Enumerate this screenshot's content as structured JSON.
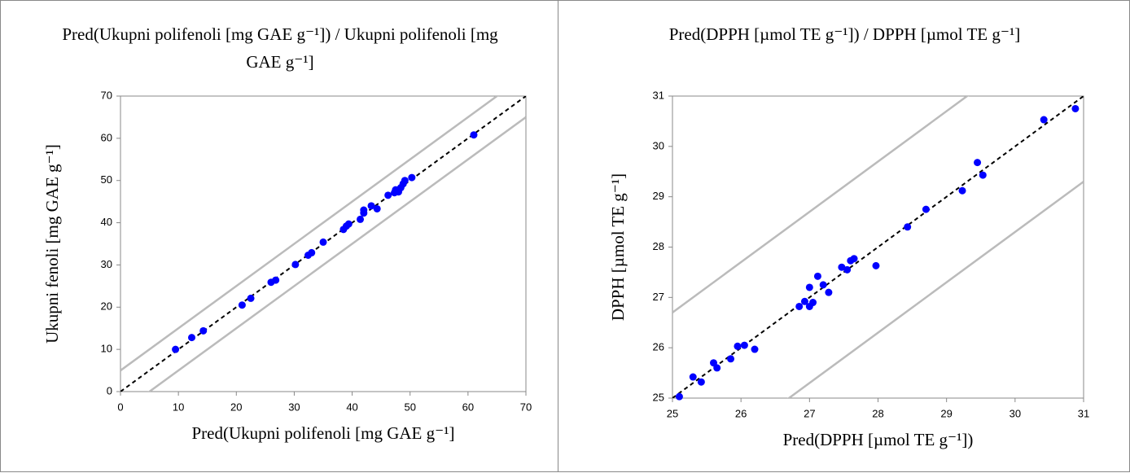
{
  "chart_data": [
    {
      "type": "scatter",
      "title": "Pred(Ukupni polifenoli [mg GAE g⁻¹]) / Ukupni polifenoli [mg GAE g⁻¹]",
      "x_label": "Pred(Ukupni polifenoli [mg GAE g⁻¹]",
      "y_label": "Ukupni fenoli [mg GAE g⁻¹]",
      "xlim": [
        0,
        70
      ],
      "ylim": [
        0,
        70
      ],
      "xticks": [
        0,
        10,
        20,
        30,
        40,
        50,
        60,
        70
      ],
      "yticks": [
        0,
        10,
        20,
        30,
        40,
        50,
        60,
        70
      ],
      "diagonal": true,
      "band_offset": 5,
      "band_color": "#bbbbbb",
      "series": [
        {
          "color": "#0000ff",
          "x": [
            9.5,
            12.3,
            14.3,
            21,
            22.5,
            26,
            26.8,
            30.2,
            32.4,
            33,
            35,
            38.5,
            39,
            39.4,
            41.4,
            42,
            42,
            43.3,
            44.3,
            46.2,
            47.3,
            47.5,
            48,
            48.4,
            48.8,
            49.1,
            50.3,
            61
          ],
          "values": [
            10,
            12.8,
            14.4,
            20.5,
            22.1,
            25.9,
            26.4,
            30.1,
            32.3,
            32.9,
            35.4,
            38.4,
            39.2,
            39.7,
            40.8,
            42.3,
            43,
            44,
            43.3,
            46.5,
            47.1,
            47.8,
            47.3,
            48.3,
            49.2,
            50,
            50.7,
            60.8
          ]
        }
      ]
    },
    {
      "type": "scatter",
      "title": "Pred(DPPH [µmol TE g⁻¹]) / DPPH [µmol TE g⁻¹]",
      "x_label": "Pred(DPPH [µmol TE g⁻¹])",
      "y_label": "DPPH [µmol TE g⁻¹]",
      "xlim": [
        25,
        31
      ],
      "ylim": [
        25,
        31
      ],
      "xticks": [
        25,
        26,
        27,
        28,
        29,
        30,
        31
      ],
      "yticks": [
        25,
        26,
        27,
        28,
        29,
        30,
        31
      ],
      "diagonal": true,
      "band_offset": 1.7,
      "band_color": "#bbbbbb",
      "series": [
        {
          "color": "#0000ff",
          "x": [
            25.1,
            25.3,
            25.42,
            25.6,
            25.65,
            25.85,
            25.95,
            26.05,
            26.2,
            26.85,
            26.93,
            27,
            27,
            27.05,
            27.12,
            27.2,
            27.28,
            27.47,
            27.55,
            27.6,
            27.65,
            27.97,
            28.43,
            28.7,
            29.23,
            29.45,
            29.53,
            30.42,
            30.88
          ],
          "values": [
            25.03,
            25.42,
            25.32,
            25.7,
            25.6,
            25.78,
            26.03,
            26.05,
            25.97,
            26.82,
            26.92,
            26.82,
            27.2,
            26.9,
            27.42,
            27.25,
            27.1,
            27.6,
            27.55,
            27.73,
            27.77,
            27.63,
            28.4,
            28.75,
            29.12,
            29.68,
            29.43,
            30.53,
            30.75
          ]
        }
      ]
    }
  ]
}
